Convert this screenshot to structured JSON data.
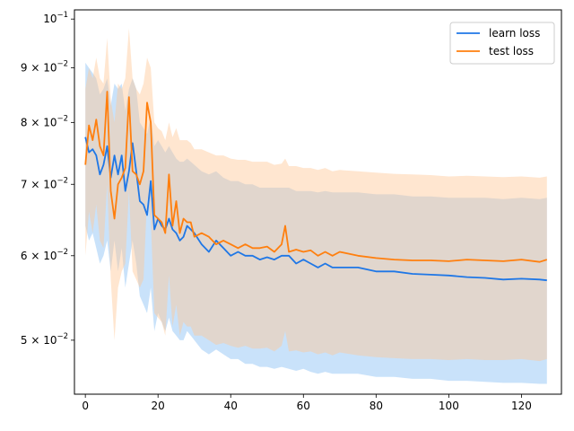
{
  "chart_data": {
    "type": "line",
    "title": "",
    "xlabel": "",
    "ylabel": "",
    "y_scale": "log",
    "xlim": [
      -3,
      131
    ],
    "ylim": [
      0.0445,
      0.102
    ],
    "x_ticks": [
      0,
      20,
      40,
      60,
      80,
      100,
      120
    ],
    "x_tick_labels": [
      "0",
      "20",
      "40",
      "60",
      "80",
      "100",
      "120"
    ],
    "y_ticks": [
      {
        "value": 0.1,
        "base": "10",
        "exp": "−1",
        "mant": ""
      },
      {
        "value": 0.09,
        "base": "10",
        "exp": "−2",
        "mant": "9 × "
      },
      {
        "value": 0.08,
        "base": "10",
        "exp": "−2",
        "mant": "8 × "
      },
      {
        "value": 0.07,
        "base": "10",
        "exp": "−2",
        "mant": "7 × "
      },
      {
        "value": 0.06,
        "base": "10",
        "exp": "−2",
        "mant": "6 × "
      },
      {
        "value": 0.05,
        "base": "10",
        "exp": "−2",
        "mant": "5 × "
      }
    ],
    "grid": false,
    "legend_position": "top-right",
    "series": [
      {
        "name": "learn loss",
        "color": "#1f77e6",
        "band_color": "#88bef5",
        "anchors_x": [
          0,
          1,
          2,
          3,
          4,
          5,
          6,
          7,
          8,
          9,
          10,
          11,
          12,
          13,
          14,
          15,
          16,
          17,
          18,
          19,
          20,
          21,
          22,
          23,
          24,
          25,
          26,
          27,
          28,
          29,
          30,
          32,
          34,
          36,
          38,
          40,
          42,
          44,
          46,
          48,
          50,
          52,
          54,
          56,
          58,
          60,
          62,
          64,
          66,
          68,
          70,
          75,
          80,
          85,
          90,
          95,
          100,
          105,
          110,
          115,
          120,
          125,
          127
        ],
        "anchors_mean": [
          0.0775,
          0.075,
          0.0755,
          0.0745,
          0.0715,
          0.073,
          0.076,
          0.071,
          0.0745,
          0.0715,
          0.0745,
          0.069,
          0.072,
          0.0765,
          0.072,
          0.0675,
          0.067,
          0.0655,
          0.0705,
          0.0635,
          0.065,
          0.064,
          0.0635,
          0.065,
          0.0635,
          0.063,
          0.062,
          0.0625,
          0.064,
          0.0635,
          0.063,
          0.0615,
          0.0605,
          0.062,
          0.061,
          0.06,
          0.0605,
          0.06,
          0.06,
          0.0595,
          0.0598,
          0.0595,
          0.06,
          0.06,
          0.059,
          0.0595,
          0.059,
          0.0585,
          0.059,
          0.0585,
          0.0585,
          0.0585,
          0.058,
          0.058,
          0.0577,
          0.0576,
          0.0575,
          0.0573,
          0.0572,
          0.057,
          0.0571,
          0.057,
          0.0569
        ],
        "anchors_upper": [
          0.091,
          0.09,
          0.089,
          0.088,
          0.085,
          0.086,
          0.088,
          0.083,
          0.087,
          0.086,
          0.087,
          0.082,
          0.086,
          0.088,
          0.086,
          0.08,
          0.079,
          0.078,
          0.081,
          0.076,
          0.077,
          0.076,
          0.075,
          0.076,
          0.075,
          0.074,
          0.0735,
          0.0735,
          0.074,
          0.0735,
          0.073,
          0.072,
          0.0715,
          0.072,
          0.071,
          0.0705,
          0.0705,
          0.07,
          0.07,
          0.0695,
          0.0695,
          0.0695,
          0.0695,
          0.0695,
          0.069,
          0.069,
          0.069,
          0.0688,
          0.069,
          0.0688,
          0.0688,
          0.0688,
          0.0685,
          0.0685,
          0.0682,
          0.0682,
          0.068,
          0.068,
          0.068,
          0.0678,
          0.068,
          0.0678,
          0.068
        ],
        "anchors_lower": [
          0.064,
          0.062,
          0.063,
          0.061,
          0.059,
          0.06,
          0.062,
          0.058,
          0.062,
          0.058,
          0.061,
          0.056,
          0.059,
          0.062,
          0.059,
          0.055,
          0.054,
          0.053,
          0.056,
          0.051,
          0.053,
          0.052,
          0.051,
          0.0525,
          0.051,
          0.0505,
          0.05,
          0.05,
          0.051,
          0.0505,
          0.05,
          0.049,
          0.0485,
          0.049,
          0.0485,
          0.048,
          0.048,
          0.0475,
          0.0475,
          0.0472,
          0.0472,
          0.047,
          0.0472,
          0.047,
          0.0468,
          0.047,
          0.0467,
          0.0465,
          0.0467,
          0.0465,
          0.0465,
          0.0465,
          0.0462,
          0.0462,
          0.046,
          0.046,
          0.0458,
          0.0458,
          0.0457,
          0.0456,
          0.0456,
          0.0455,
          0.0455
        ]
      },
      {
        "name": "test loss",
        "color": "#ff7f0e",
        "band_color": "#ffc896",
        "anchors_x": [
          0,
          1,
          2,
          3,
          4,
          5,
          6,
          7,
          8,
          9,
          10,
          11,
          12,
          13,
          14,
          15,
          16,
          17,
          18,
          19,
          20,
          21,
          22,
          23,
          24,
          25,
          26,
          27,
          28,
          29,
          30,
          32,
          34,
          36,
          38,
          40,
          42,
          44,
          46,
          48,
          50,
          52,
          54,
          55,
          56,
          58,
          60,
          62,
          64,
          66,
          68,
          70,
          75,
          80,
          85,
          90,
          95,
          100,
          105,
          110,
          115,
          120,
          125,
          127
        ],
        "anchors_mean": [
          0.073,
          0.0795,
          0.077,
          0.0805,
          0.076,
          0.0745,
          0.0855,
          0.069,
          0.065,
          0.07,
          0.071,
          0.0725,
          0.0845,
          0.072,
          0.0715,
          0.07,
          0.072,
          0.0835,
          0.08,
          0.0655,
          0.065,
          0.0645,
          0.063,
          0.0715,
          0.064,
          0.0675,
          0.063,
          0.065,
          0.0645,
          0.0645,
          0.0625,
          0.063,
          0.0625,
          0.0615,
          0.062,
          0.0615,
          0.061,
          0.0615,
          0.061,
          0.061,
          0.0612,
          0.0605,
          0.0615,
          0.064,
          0.0605,
          0.0608,
          0.0605,
          0.0607,
          0.06,
          0.0605,
          0.06,
          0.0605,
          0.06,
          0.0597,
          0.0595,
          0.0594,
          0.0594,
          0.0593,
          0.0595,
          0.0594,
          0.0593,
          0.0595,
          0.0592,
          0.0595
        ],
        "anchors_upper": [
          0.086,
          0.09,
          0.088,
          0.092,
          0.088,
          0.087,
          0.096,
          0.084,
          0.08,
          0.087,
          0.086,
          0.088,
          0.098,
          0.088,
          0.086,
          0.085,
          0.087,
          0.092,
          0.09,
          0.08,
          0.079,
          0.0785,
          0.077,
          0.08,
          0.0775,
          0.079,
          0.077,
          0.077,
          0.077,
          0.0765,
          0.0755,
          0.0755,
          0.075,
          0.0745,
          0.0745,
          0.074,
          0.0738,
          0.0738,
          0.0735,
          0.0735,
          0.0735,
          0.073,
          0.0732,
          0.074,
          0.0728,
          0.0728,
          0.0725,
          0.0725,
          0.0722,
          0.0725,
          0.072,
          0.0722,
          0.072,
          0.0718,
          0.0716,
          0.0715,
          0.0714,
          0.0712,
          0.0713,
          0.0712,
          0.0711,
          0.0712,
          0.071,
          0.0712
        ],
        "anchors_lower": [
          0.06,
          0.066,
          0.063,
          0.067,
          0.062,
          0.061,
          0.07,
          0.057,
          0.05,
          0.056,
          0.058,
          0.059,
          0.069,
          0.058,
          0.057,
          0.056,
          0.057,
          0.068,
          0.065,
          0.053,
          0.0525,
          0.052,
          0.0505,
          0.0575,
          0.0515,
          0.054,
          0.0505,
          0.052,
          0.0515,
          0.0515,
          0.0505,
          0.0505,
          0.05,
          0.0495,
          0.0497,
          0.0494,
          0.0492,
          0.0494,
          0.0491,
          0.0491,
          0.0492,
          0.0488,
          0.0494,
          0.051,
          0.0488,
          0.0489,
          0.0487,
          0.0488,
          0.0485,
          0.0487,
          0.0484,
          0.0487,
          0.0484,
          0.0482,
          0.0481,
          0.048,
          0.048,
          0.0479,
          0.048,
          0.0479,
          0.0479,
          0.048,
          0.0478,
          0.048
        ]
      }
    ]
  }
}
